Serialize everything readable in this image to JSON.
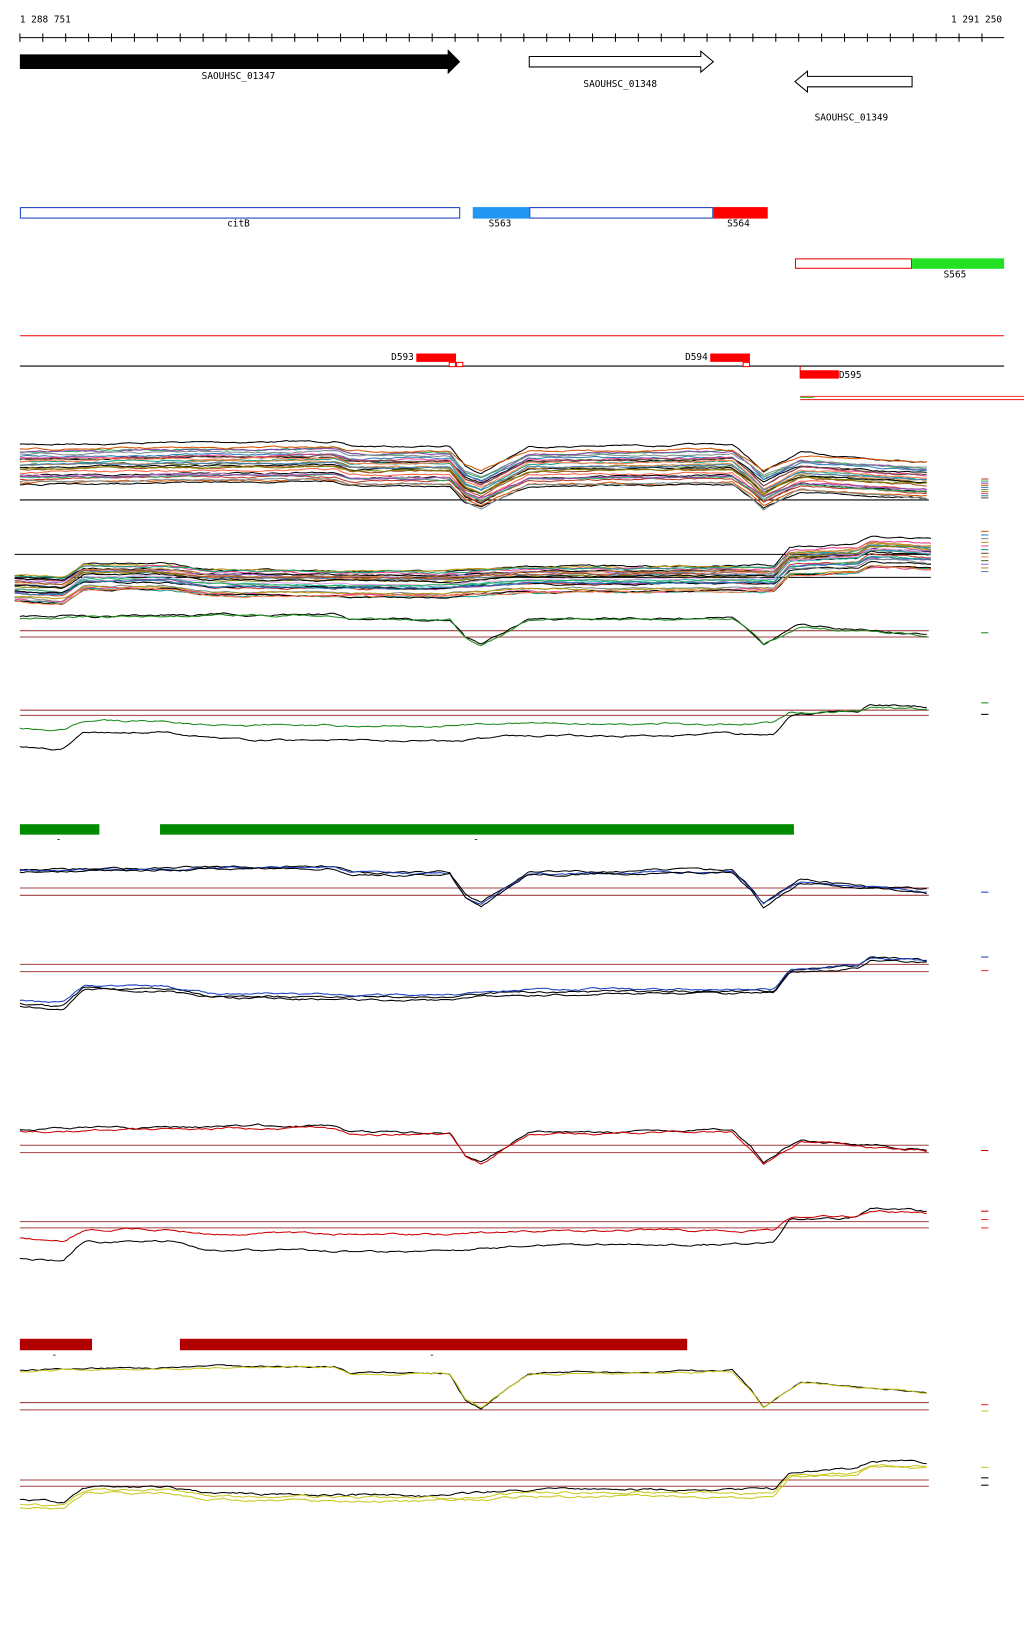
{
  "ruler": {
    "start": "1 288 751",
    "end": "1 291 250"
  },
  "genes": [
    {
      "label": "SAOUHSC_01347"
    },
    {
      "label": "SAOUHSC_01348"
    },
    {
      "label": "SAOUHSC_01349"
    }
  ],
  "features": [
    {
      "label": "citB"
    },
    {
      "label": "S563"
    },
    {
      "label": "S564"
    },
    {
      "label": "S565"
    }
  ],
  "segments": [
    {
      "label": "D593"
    },
    {
      "label": "D594"
    },
    {
      "label": "D595"
    }
  ],
  "marks": [
    "-",
    "-",
    "-",
    "-"
  ]
}
